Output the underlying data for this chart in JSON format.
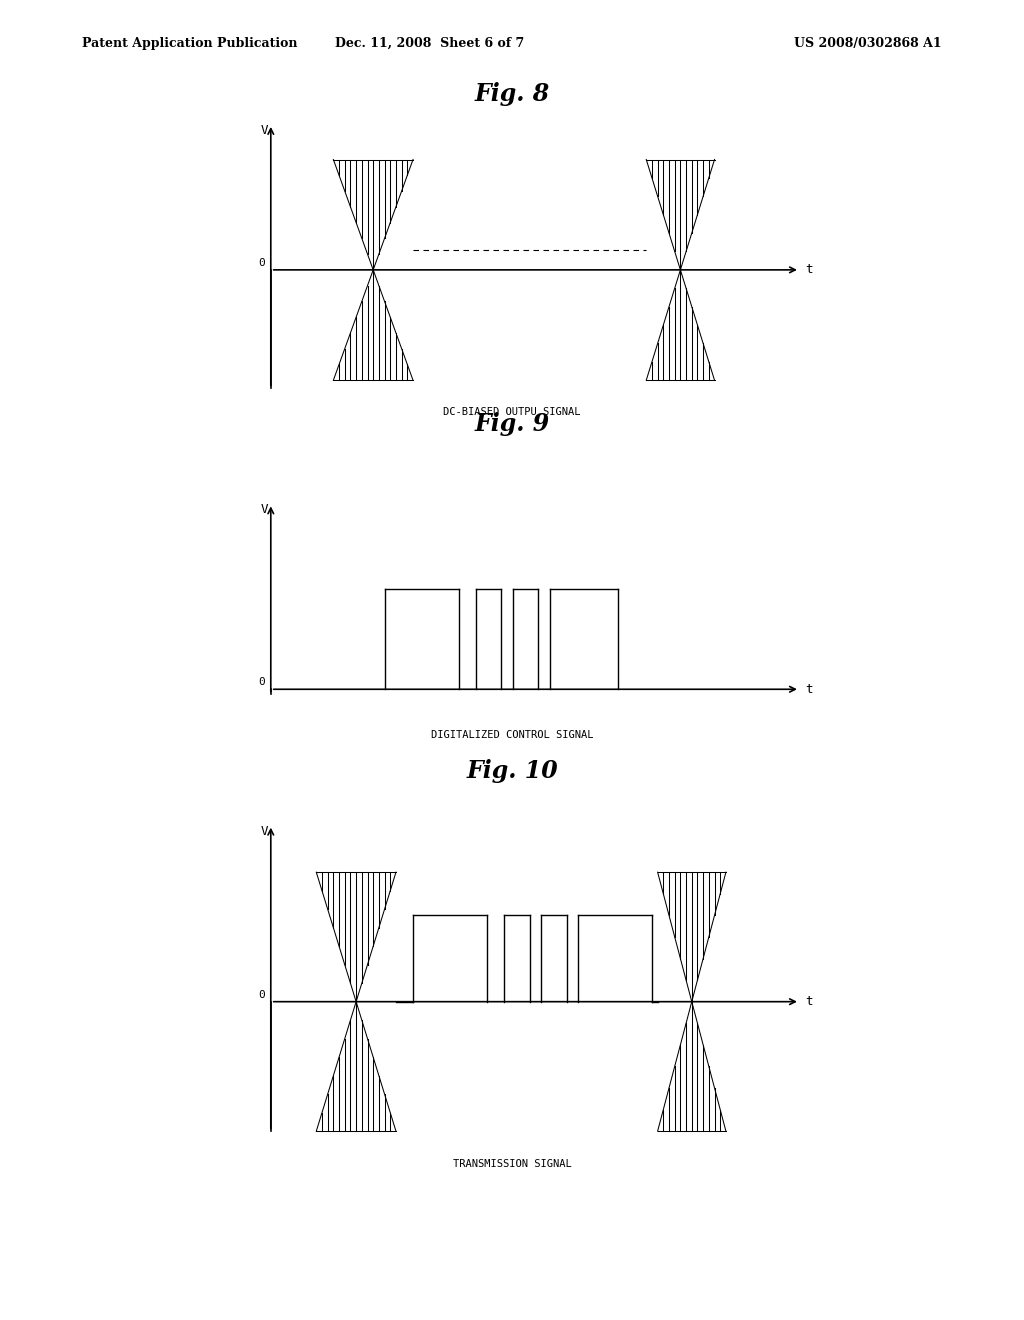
{
  "background_color": "#ffffff",
  "header_left": "Patent Application Publication",
  "header_mid": "Dec. 11, 2008  Sheet 6 of 7",
  "header_right": "US 2008/0302868 A1",
  "fig8_title": "Fig. 8",
  "fig9_title": "Fig. 9",
  "fig10_title": "Fig. 10",
  "fig8_label": "DC-BIASED OUTPU SIGNAL",
  "fig9_label": "DIGITALIZED CONTROL SIGNAL",
  "fig10_label": "TRANSMISSION SIGNAL",
  "text_color": "#000000"
}
